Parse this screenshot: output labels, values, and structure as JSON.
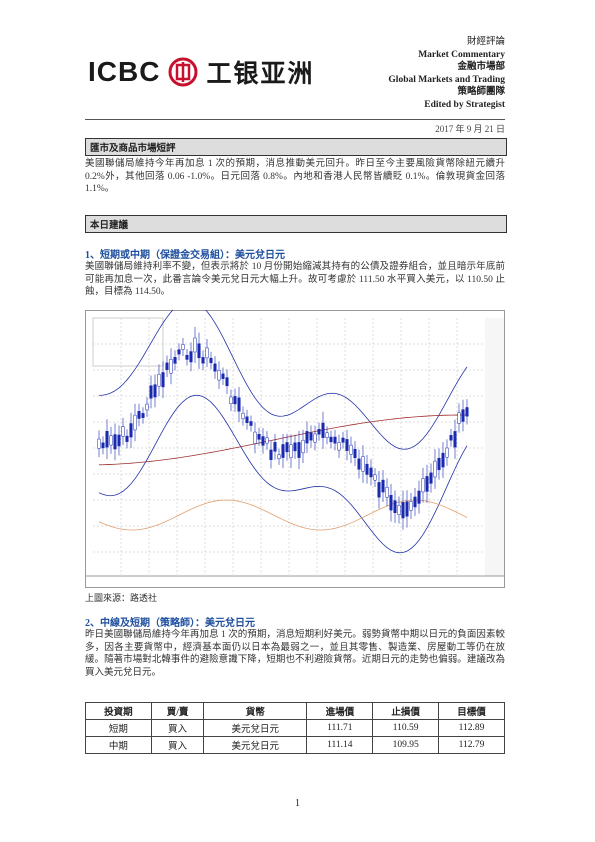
{
  "header": {
    "logo_en": "ICBC",
    "logo_cn": "工银亚洲",
    "lines": [
      "財經評論",
      "Market Commentary",
      "金融市場部",
      "Global Markets and Trading",
      "策略師團隊",
      "Edited by Strategist"
    ],
    "date": "2017 年 9 月 21 日"
  },
  "market_review": {
    "heading": "匯市及商品市場短評",
    "text": "美國聯儲局維持今年再加息 1 次的預期，消息推動美元回升。昨日至今主要風險貨幣除紐元續升 0.2%外，其他回落 0.06 -1.0%。日元回落 0.8%。內地和香港人民幣皆續貶 0.1%。倫敦現貨金回落 1.1%。"
  },
  "recommendation": {
    "heading": "本日建議",
    "item1": {
      "title": "1、短期或中期（保證金交易組）：美元兌日元",
      "text": "美國聯儲局維持利率不變，但表示將於 10 月份開始縮減其持有的公債及證券組合，並且暗示年底前可能再加息一次，此番言論令美元兌日元大幅上升。故可考慮於 111.50 水平買入美元，以 110.50 止蝕，目標為 114.50。",
      "caption": "上圖來源：路透社"
    },
    "item2": {
      "title": "2、中線及短期（策略師）：美元兌日元",
      "text": "昨日美國聯儲局維持今年再加息 1 次的預期，消息短期利好美元。弱勢貨幣中期以日元的負面因素較多，因各主要貨幣中，經濟基本面仍以日本為最弱之一，並且其零售、製造業、房屋動工等仍在放緩。隨著市場對北韓事件的避險意識下降，短期也不利避險貨幣。近期日元的走勢也偏弱。建議改為買入美元兌日元。"
    }
  },
  "table": {
    "header": [
      "投資期",
      "買/賣",
      "貨幣",
      "進場價",
      "止損價",
      "目標價"
    ],
    "rows": [
      [
        "短期",
        "買入",
        "美元兌日元",
        "111.71",
        "110.59",
        "112.89"
      ],
      [
        "中期",
        "買入",
        "美元兌日元",
        "111.14",
        "109.95",
        "112.79"
      ]
    ]
  },
  "page_number": "1"
}
